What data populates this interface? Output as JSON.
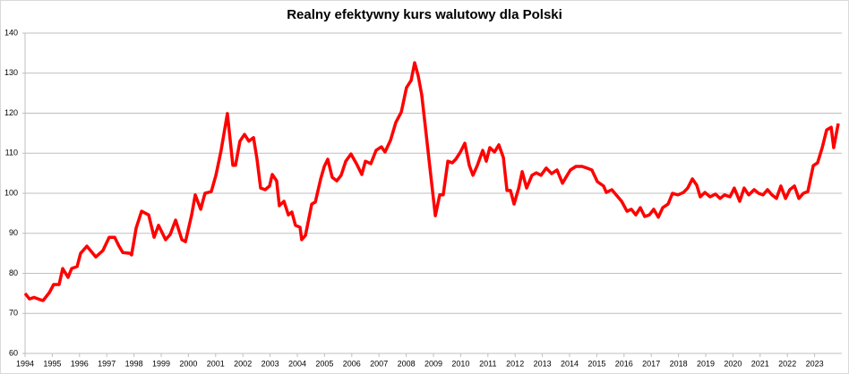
{
  "chart_data": {
    "type": "line",
    "title": "Realny efektywny kurs walutowy dla Polski",
    "xlim": [
      1994,
      2024
    ],
    "xticks": [
      1994,
      1995,
      1996,
      1997,
      1998,
      1999,
      2000,
      2001,
      2002,
      2003,
      2004,
      2005,
      2006,
      2007,
      2008,
      2009,
      2010,
      2011,
      2012,
      2013,
      2014,
      2015,
      2016,
      2017,
      2018,
      2019,
      2020,
      2021,
      2022,
      2023
    ],
    "ylim": [
      60,
      140
    ],
    "yticks": [
      60,
      70,
      80,
      90,
      100,
      110,
      120,
      130,
      140
    ],
    "grid": true,
    "series": [
      {
        "color": "#ff0000",
        "x": [
          1994.0,
          1994.16,
          1994.33,
          1994.56,
          1994.66,
          1994.89,
          1995.05,
          1995.25,
          1995.38,
          1995.58,
          1995.71,
          1995.91,
          1996.04,
          1996.27,
          1996.6,
          1996.86,
          1997.09,
          1997.29,
          1997.45,
          1997.59,
          1997.85,
          1997.91,
          1998.08,
          1998.28,
          1998.54,
          1998.74,
          1998.9,
          1999.16,
          1999.33,
          1999.53,
          1999.76,
          1999.89,
          2000.12,
          2000.25,
          2000.45,
          2000.61,
          2000.84,
          2001.01,
          2001.2,
          2001.43,
          2001.63,
          2001.73,
          2001.89,
          2002.06,
          2002.22,
          2002.39,
          2002.52,
          2002.65,
          2002.82,
          2002.98,
          2003.08,
          2003.24,
          2003.34,
          2003.51,
          2003.67,
          2003.8,
          2003.93,
          2004.1,
          2004.16,
          2004.3,
          2004.53,
          2004.66,
          2004.86,
          2004.99,
          2005.12,
          2005.28,
          2005.45,
          2005.61,
          2005.78,
          2005.97,
          2006.17,
          2006.37,
          2006.5,
          2006.7,
          2006.89,
          2007.09,
          2007.22,
          2007.42,
          2007.62,
          2007.82,
          2008.01,
          2008.18,
          2008.31,
          2008.44,
          2008.57,
          2008.74,
          2008.9,
          2009.07,
          2009.23,
          2009.36,
          2009.53,
          2009.69,
          2009.82,
          2009.99,
          2010.15,
          2010.32,
          2010.45,
          2010.61,
          2010.81,
          2010.94,
          2011.07,
          2011.24,
          2011.4,
          2011.57,
          2011.7,
          2011.83,
          2011.96,
          2012.13,
          2012.26,
          2012.42,
          2012.62,
          2012.78,
          2012.95,
          2013.14,
          2013.34,
          2013.54,
          2013.74,
          2013.87,
          2014.03,
          2014.23,
          2014.46,
          2014.63,
          2014.82,
          2015.02,
          2015.25,
          2015.35,
          2015.55,
          2015.71,
          2015.91,
          2016.11,
          2016.27,
          2016.43,
          2016.6,
          2016.76,
          2016.93,
          2017.09,
          2017.26,
          2017.42,
          2017.62,
          2017.78,
          2017.98,
          2018.18,
          2018.34,
          2018.51,
          2018.67,
          2018.8,
          2018.97,
          2019.16,
          2019.36,
          2019.53,
          2019.69,
          2019.89,
          2020.05,
          2020.25,
          2020.41,
          2020.58,
          2020.78,
          2020.94,
          2021.11,
          2021.27,
          2021.43,
          2021.6,
          2021.76,
          2021.93,
          2022.09,
          2022.26,
          2022.42,
          2022.59,
          2022.75,
          2022.95,
          2023.11,
          2023.28,
          2023.44,
          2023.61,
          2023.7,
          2023.87
        ],
        "values": [
          75.0,
          73.6,
          74.0,
          73.4,
          73.2,
          75.2,
          77.2,
          77.2,
          81.2,
          79.0,
          81.2,
          81.7,
          85.0,
          86.8,
          84.1,
          85.7,
          89.0,
          89.0,
          86.8,
          85.2,
          85.0,
          84.6,
          91.3,
          95.5,
          94.6,
          89.0,
          92.0,
          88.4,
          89.7,
          93.3,
          88.4,
          87.9,
          94.6,
          99.6,
          96.0,
          100.0,
          100.4,
          104.5,
          110.7,
          119.9,
          107.0,
          107.0,
          113.0,
          114.7,
          113.0,
          113.9,
          108.5,
          101.3,
          100.9,
          101.8,
          104.7,
          103.1,
          96.9,
          98.0,
          94.6,
          95.3,
          92.0,
          91.5,
          88.4,
          89.5,
          97.3,
          97.8,
          103.6,
          106.7,
          108.5,
          104.0,
          103.1,
          104.5,
          108.0,
          109.8,
          107.4,
          104.7,
          108.0,
          107.4,
          110.7,
          111.6,
          110.3,
          113.2,
          117.7,
          120.3,
          126.4,
          128.2,
          132.6,
          129.3,
          124.6,
          114.3,
          104.5,
          94.4,
          99.6,
          99.6,
          108.0,
          107.6,
          108.5,
          110.3,
          112.5,
          106.9,
          104.5,
          106.9,
          110.7,
          108.0,
          111.4,
          110.3,
          112.1,
          108.9,
          100.7,
          100.7,
          97.3,
          101.3,
          105.4,
          101.3,
          104.5,
          105.1,
          104.5,
          106.3,
          104.9,
          105.8,
          102.5,
          104.0,
          105.8,
          106.7,
          106.7,
          106.3,
          105.8,
          102.9,
          101.8,
          100.2,
          100.9,
          99.6,
          98.0,
          95.5,
          96.0,
          94.6,
          96.4,
          94.2,
          94.6,
          96.0,
          94.0,
          96.4,
          97.3,
          100.0,
          99.6,
          100.2,
          101.3,
          103.6,
          102.0,
          99.1,
          100.2,
          99.1,
          99.8,
          98.7,
          99.6,
          99.1,
          101.3,
          98.0,
          101.3,
          99.6,
          100.9,
          100.0,
          99.6,
          100.9,
          99.6,
          98.7,
          101.8,
          98.7,
          100.9,
          101.8,
          98.7,
          100.0,
          100.4,
          106.9,
          107.6,
          111.4,
          115.8,
          116.5,
          111.4,
          117.4
        ]
      }
    ]
  }
}
